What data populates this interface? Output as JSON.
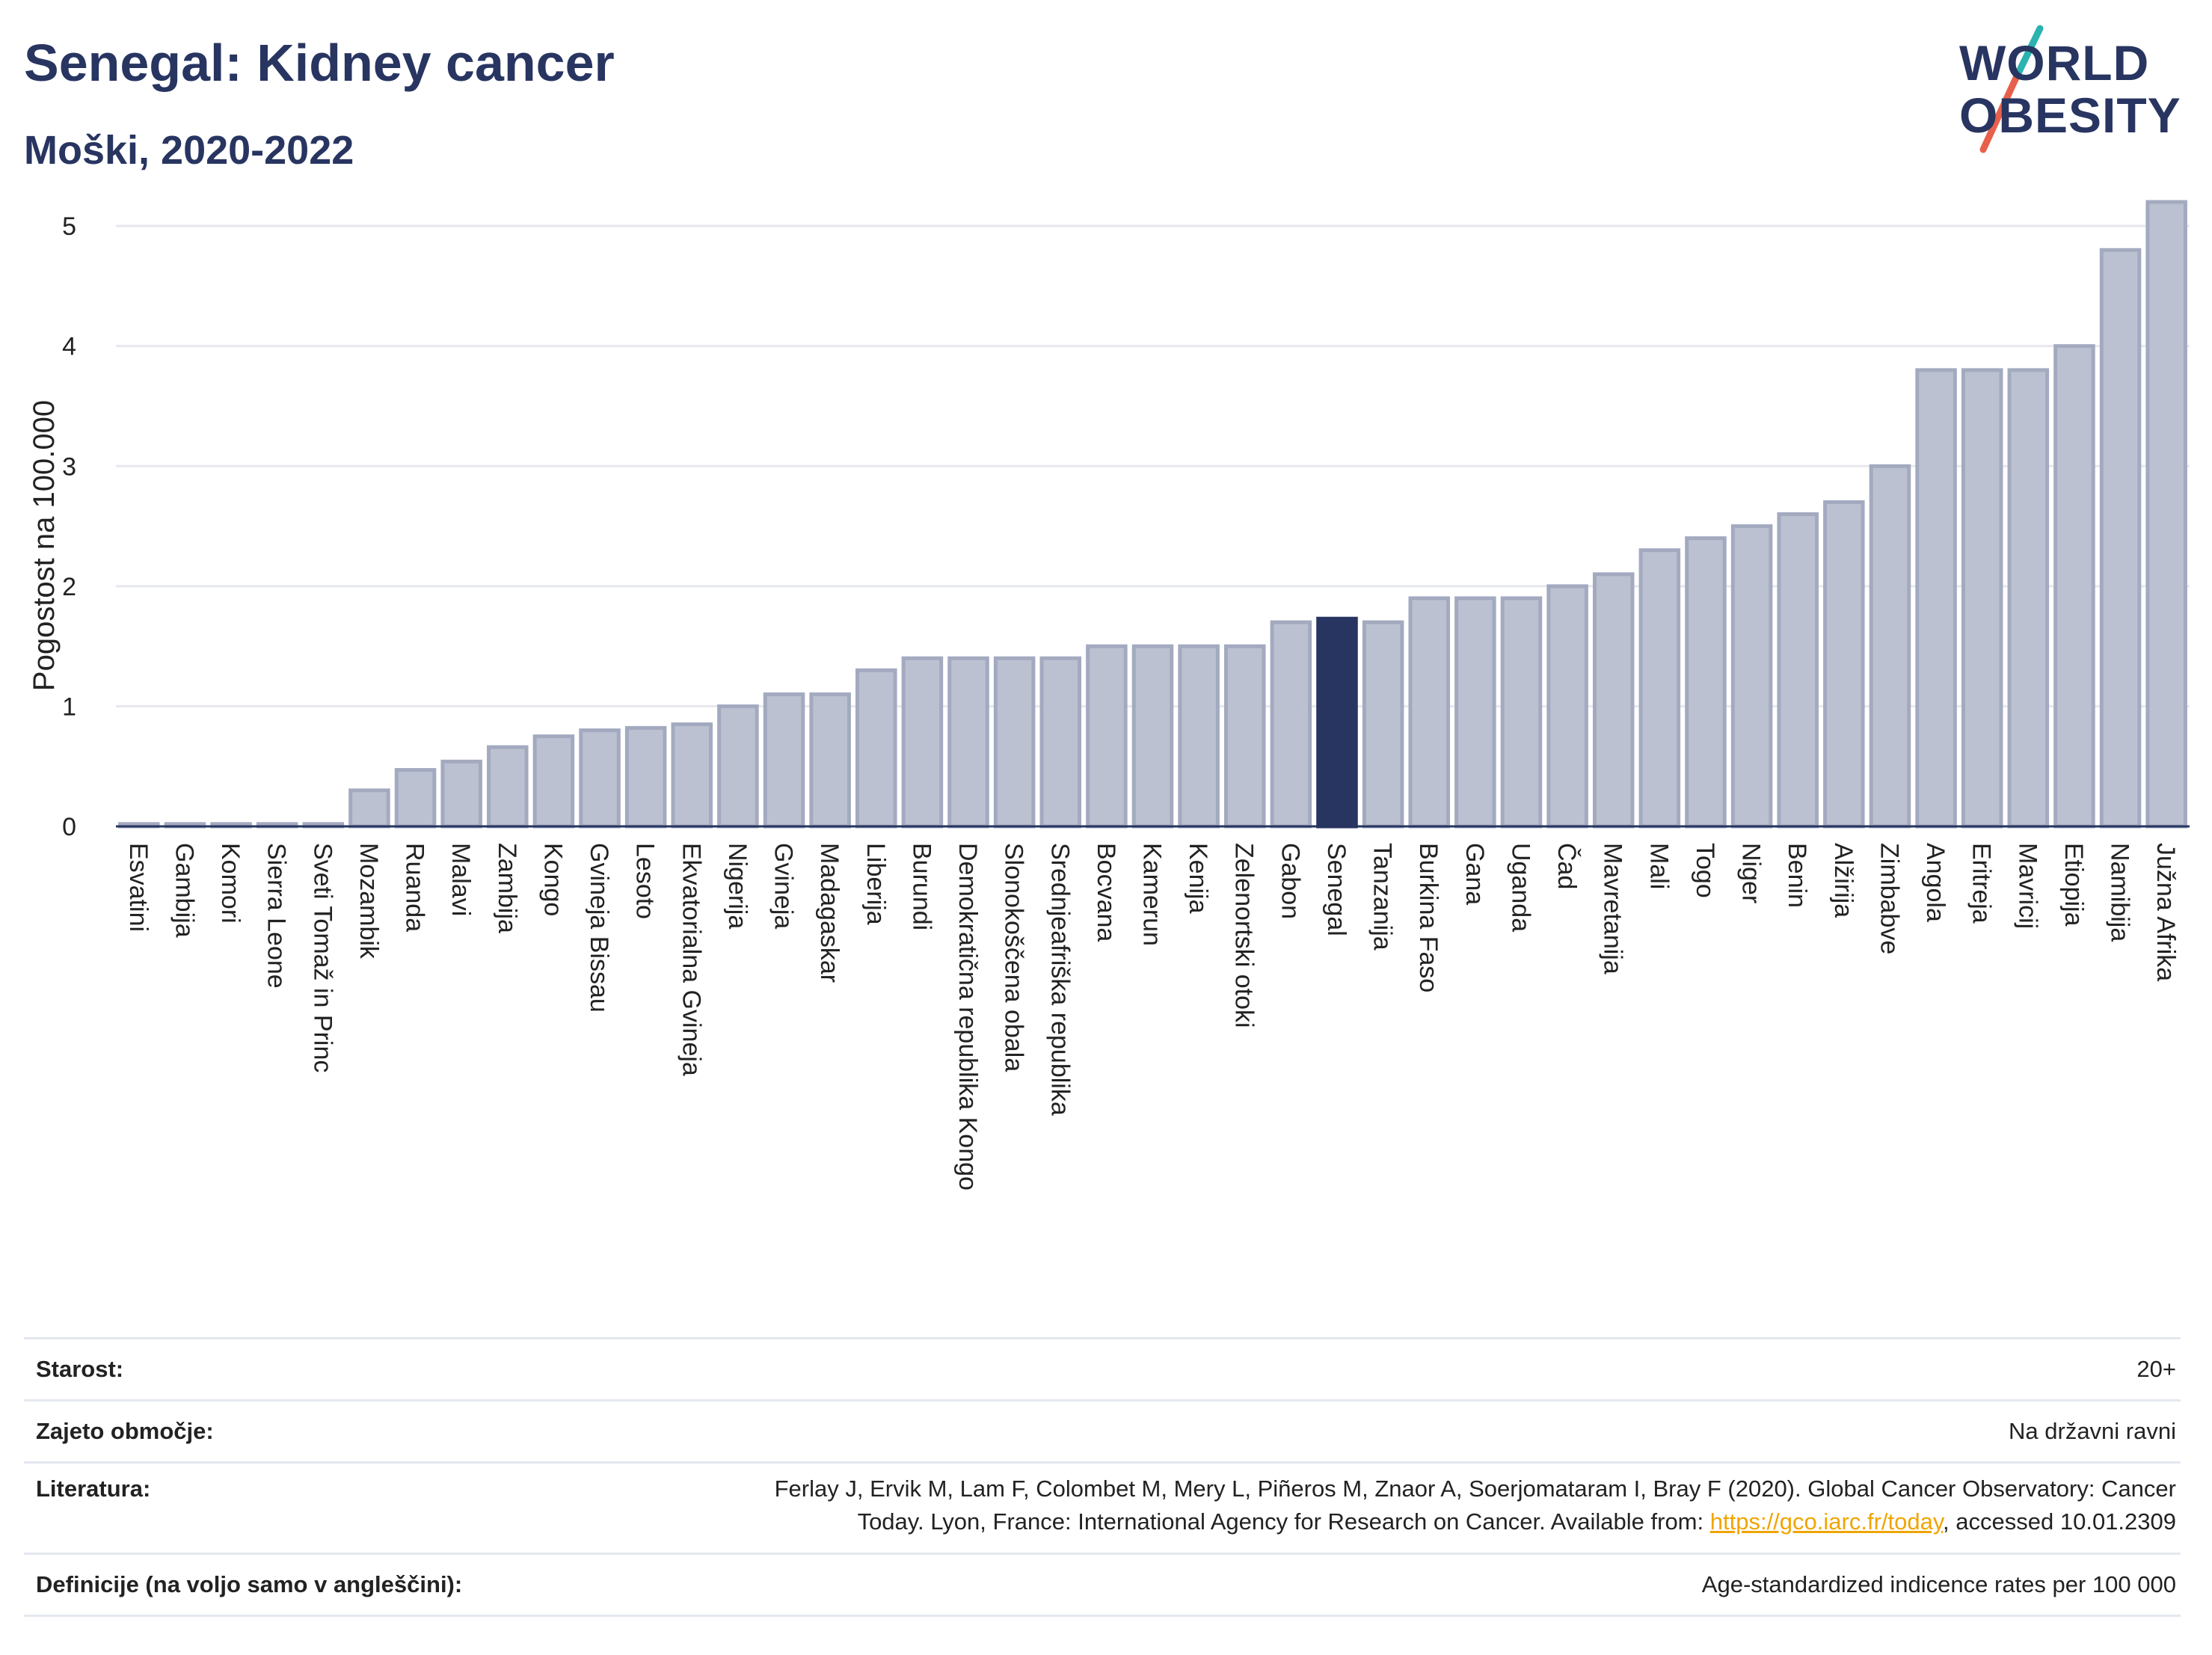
{
  "header": {
    "title": "Senegal: Kidney cancer",
    "subtitle": "Moški, 2020-2022"
  },
  "logo": {
    "line1": "WORLD",
    "line2": "OBESITY",
    "slash_colors": [
      "#2ab3b0",
      "#e8604c"
    ]
  },
  "colors": {
    "bar": "#bcc1d1",
    "bar_border": "#a3aac0",
    "highlight": "#283561",
    "grid": "#e6e8ee"
  },
  "chart_data": {
    "type": "bar",
    "ylabel": "Pogostost na 100.000",
    "ylim": [
      0,
      5.3
    ],
    "yticks": [
      0,
      1,
      2,
      3,
      4,
      5
    ],
    "grid": true,
    "highlight": "Senegal",
    "categories": [
      "Esvatini",
      "Gambija",
      "Komori",
      "Sierra Leone",
      "Sveti Tomaž in Princ",
      "Mozambik",
      "Ruanda",
      "Malavi",
      "Zambija",
      "Kongo",
      "Gvineja Bissau",
      "Lesoto",
      "Ekvatorialna Gvineja",
      "Nigerija",
      "Gvineja",
      "Madagaskar",
      "Liberija",
      "Burundi",
      "Demokratična republika Kongo",
      "Slonokoščena obala",
      "Srednjeafriška republika",
      "Bocvana",
      "Kamerun",
      "Kenija",
      "Zelenortski otoki",
      "Gabon",
      "Senegal",
      "Tanzanija",
      "Burkina Faso",
      "Gana",
      "Uganda",
      "Čad",
      "Mavretanija",
      "Mali",
      "Togo",
      "Niger",
      "Benin",
      "Alžirija",
      "Zimbabve",
      "Angola",
      "Eritreja",
      "Mavricij",
      "Etiopija",
      "Namibija",
      "Južna Afrika"
    ],
    "values": [
      0.02,
      0.02,
      0.02,
      0.02,
      0.02,
      0.3,
      0.47,
      0.54,
      0.66,
      0.75,
      0.8,
      0.82,
      0.85,
      1.0,
      1.1,
      1.1,
      1.3,
      1.4,
      1.4,
      1.4,
      1.4,
      1.5,
      1.5,
      1.5,
      1.5,
      1.7,
      1.73,
      1.7,
      1.9,
      1.9,
      1.9,
      2.0,
      2.1,
      2.3,
      2.4,
      2.5,
      2.6,
      2.7,
      3.0,
      3.8,
      3.8,
      3.8,
      4.0,
      4.8,
      5.2
    ]
  },
  "meta": {
    "age_label": "Starost:",
    "age_value": "20+",
    "coverage_label": "Zajeto območje:",
    "coverage_value": "Na državni ravni",
    "reference_label": "Literatura:",
    "reference_line1": "Ferlay J, Ervik M, Lam F, Colombet M, Mery L, Piñeros M, Znaor A, Soerjomataram I, Bray F (2020). Global Cancer Observatory: Cancer",
    "reference_line2_pre": "Today. Lyon, France: International Agency for Research on Cancer. Available from: ",
    "reference_link": "https://gco.iarc.fr/today",
    "reference_line2_post": ", accessed 10.01.2309",
    "definitions_label": "Definicije (na voljo samo v angleščini):",
    "definitions_value": "Age-standardized indicence rates per 100 000"
  }
}
